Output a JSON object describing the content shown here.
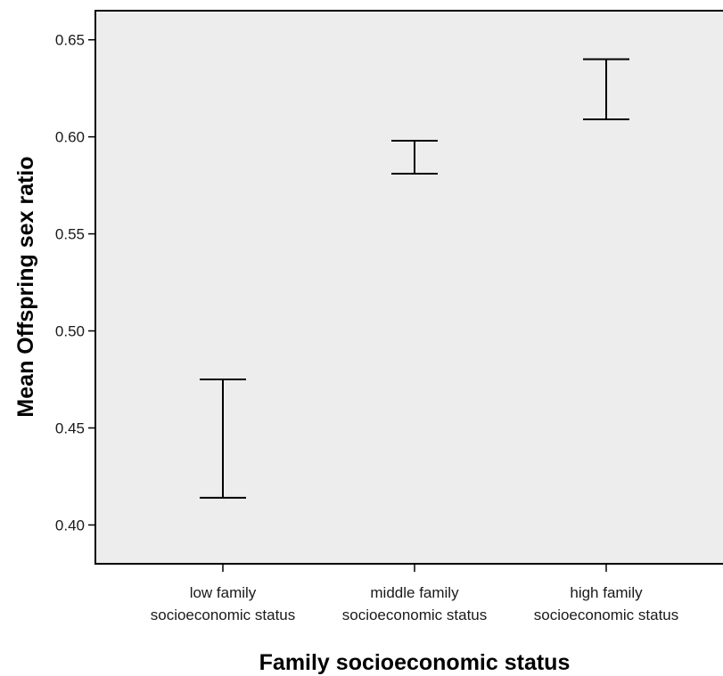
{
  "chart_data": {
    "type": "error-bar",
    "ylabel": "Mean Offspring sex ratio",
    "xlabel": "Family socioeconomic status",
    "ylim": [
      0.38,
      0.665
    ],
    "yticks": [
      0.4,
      0.45,
      0.5,
      0.55,
      0.6,
      0.65
    ],
    "ytick_labels": [
      "0.40",
      "0.45",
      "0.50",
      "0.55",
      "0.60",
      "0.65"
    ],
    "categories": [
      [
        "low family",
        "socioeconomic status"
      ],
      [
        "middle family",
        "socioeconomic status"
      ],
      [
        "high family",
        "socioeconomic status"
      ]
    ],
    "intervals": [
      {
        "lower": 0.414,
        "upper": 0.475
      },
      {
        "lower": 0.581,
        "upper": 0.598
      },
      {
        "lower": 0.609,
        "upper": 0.64
      }
    ],
    "grid": false,
    "plot_background": "#ededed",
    "bar_color": "#000000"
  }
}
